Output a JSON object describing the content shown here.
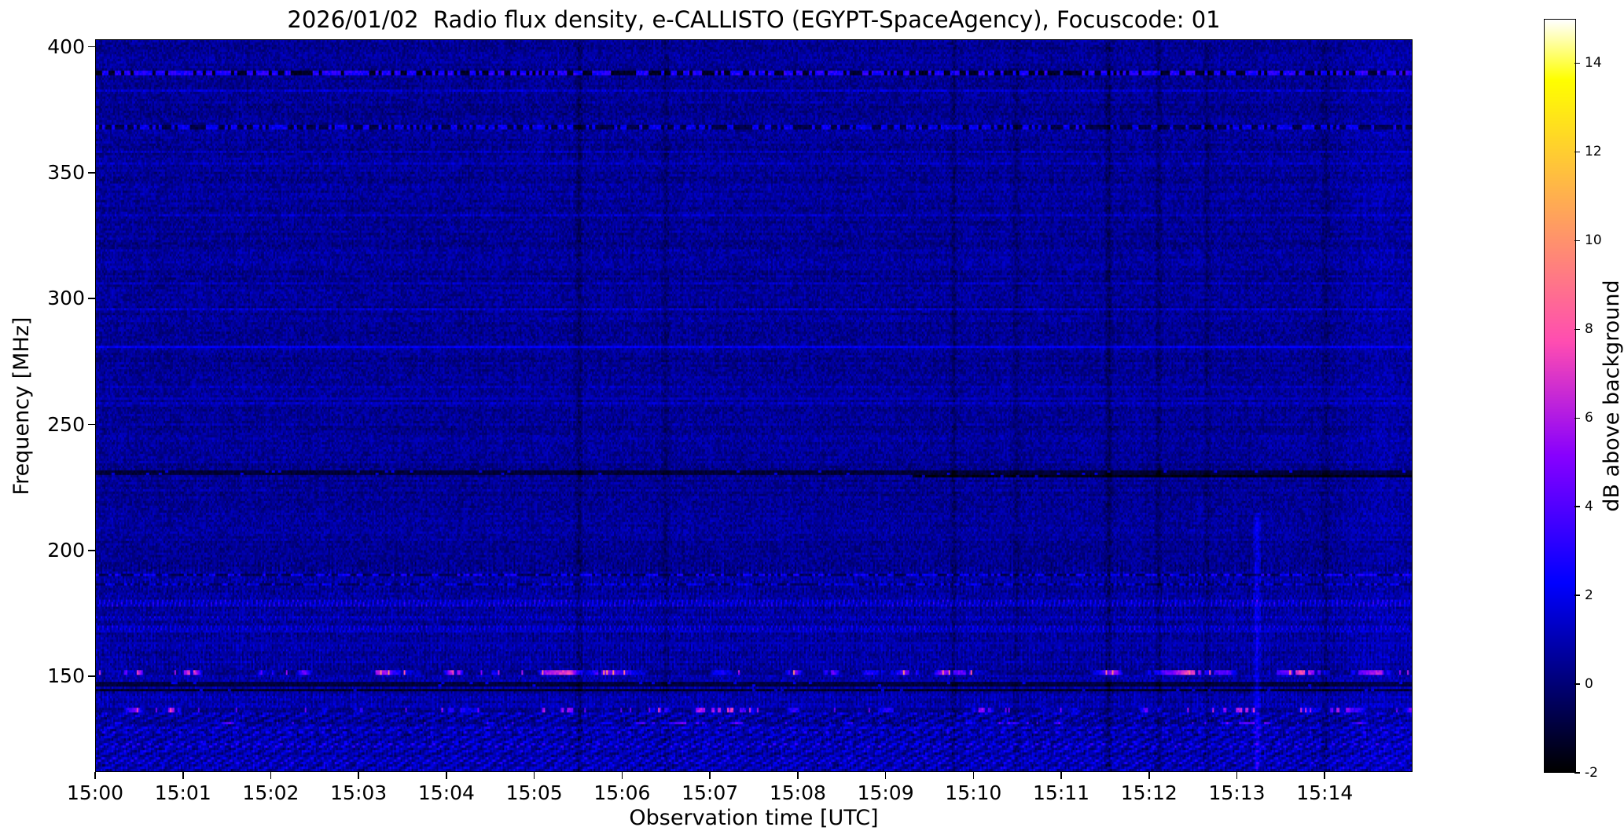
{
  "chart_data": {
    "type": "heatmap",
    "title": "2026/01/02  Radio flux density, e-CALLISTO (EGYPT-SpaceAgency), Focuscode: 01",
    "xlabel": "Observation time [UTC]",
    "ylabel": "Frequency [MHz]",
    "value_label": "dB above background",
    "colormap": "gnuplot2",
    "value_range_db": [
      -2,
      15
    ],
    "colorbar_ticks": [
      "-2",
      "0",
      "2",
      "4",
      "6",
      "8",
      "10",
      "12",
      "14"
    ],
    "x_ticks": [
      "15:00",
      "15:01",
      "15:02",
      "15:03",
      "15:04",
      "15:05",
      "15:06",
      "15:07",
      "15:08",
      "15:09",
      "15:10",
      "15:11",
      "15:12",
      "15:13",
      "15:14"
    ],
    "x_range_minutes": [
      0,
      15
    ],
    "y_ticks": [
      400,
      350,
      300,
      250,
      200,
      150
    ],
    "y_range_mhz": [
      112,
      403
    ],
    "background_level_db": 0.5,
    "grid": false,
    "legend": "none",
    "rfi_bands": [
      {
        "freq_mhz": 390.5,
        "width_mhz": 2.4,
        "kind": "speckle",
        "level_db": 2.4,
        "dark_db": -1.4,
        "duty": 0.45
      },
      {
        "freq_mhz": 368.5,
        "width_mhz": 1.6,
        "kind": "speckle",
        "level_db": 1.6,
        "dark_db": -0.8,
        "duty": 0.5
      },
      {
        "freq_mhz": 281.0,
        "width_mhz": 1.2,
        "kind": "steady",
        "level_db": 2.0
      },
      {
        "freq_mhz": 260.0,
        "width_mhz": 0.9,
        "kind": "steady",
        "level_db": 1.1
      },
      {
        "freq_mhz": 231.0,
        "width_mhz": 1.8,
        "kind": "dark",
        "level_db": -1.1
      },
      {
        "freq_mhz": 229.3,
        "width_mhz": 1.4,
        "kind": "dark",
        "level_db": -1.7,
        "after_t": 0.62
      },
      {
        "freq_mhz": 190.0,
        "width_mhz": 1.4,
        "kind": "speckle",
        "level_db": 1.8,
        "dark_db": -0.6,
        "duty": 0.5
      },
      {
        "freq_mhz": 186.0,
        "width_mhz": 0.9,
        "kind": "speckle",
        "level_db": 1.4,
        "dark_db": -0.4,
        "duty": 0.5
      },
      {
        "freq_mhz": 178.5,
        "width_mhz": 2.6,
        "kind": "stripes",
        "level_db": 2.6
      },
      {
        "freq_mhz": 173.0,
        "width_mhz": 1.6,
        "kind": "stripes",
        "level_db": 2.0
      },
      {
        "freq_mhz": 169.0,
        "width_mhz": 1.9,
        "kind": "stripes",
        "level_db": 2.3
      },
      {
        "freq_mhz": 163.0,
        "width_mhz": 1.0,
        "kind": "steady",
        "level_db": 1.0
      },
      {
        "freq_mhz": 151.0,
        "width_mhz": 2.0,
        "kind": "burst",
        "level_db": 6.8,
        "duty": 0.6
      },
      {
        "freq_mhz": 146.0,
        "width_mhz": 1.6,
        "kind": "dark",
        "level_db": -1.0
      },
      {
        "freq_mhz": 143.5,
        "width_mhz": 1.0,
        "kind": "dark",
        "level_db": -1.3
      },
      {
        "freq_mhz": 136.0,
        "width_mhz": 1.6,
        "kind": "burst",
        "level_db": 5.2,
        "duty": 0.4
      },
      {
        "freq_mhz": 131.0,
        "width_mhz": 1.4,
        "kind": "burst",
        "level_db": 3.8,
        "duty": 0.45
      },
      {
        "freq_mhz": 127.0,
        "width_mhz": 1.6,
        "kind": "texture",
        "level_db": 2.4
      },
      {
        "freq_mhz": 122.0,
        "width_mhz": 2.2,
        "kind": "texture",
        "level_db": 2.7
      },
      {
        "freq_mhz": 116.0,
        "width_mhz": 3.0,
        "kind": "texture",
        "level_db": 2.3
      }
    ],
    "time_events": [
      {
        "t_frac": 0.367,
        "delta_db": -0.9
      },
      {
        "t_frac": 0.433,
        "delta_db": -0.6
      },
      {
        "t_frac": 0.652,
        "delta_db": -0.8
      },
      {
        "t_frac": 0.7,
        "delta_db": -0.5
      },
      {
        "t_frac": 0.77,
        "delta_db": -1.0
      },
      {
        "t_frac": 0.808,
        "delta_db": -0.9
      },
      {
        "t_frac": 0.845,
        "delta_db": -0.7
      },
      {
        "t_frac": 0.883,
        "delta_db": 1.5,
        "below_mhz": 215
      },
      {
        "t_frac": 0.935,
        "delta_db": -0.7
      },
      {
        "t_frac": 0.978,
        "delta_db": 0.35,
        "width_frac": 0.04
      }
    ]
  }
}
